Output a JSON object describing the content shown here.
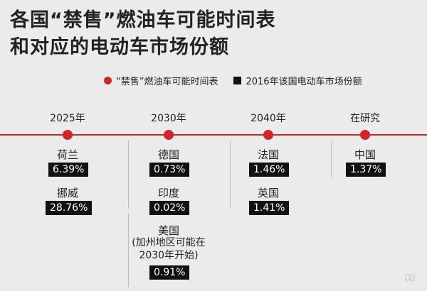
{
  "title": {
    "line1": "各国“禁售”燃油车可能时间表",
    "line2": "和对应的电动车市场份额"
  },
  "legend": {
    "ban_label": "“禁售”燃油车可能时间表",
    "share_label": "2016年该国电动车市场份额",
    "ban_color": "#d0262a",
    "share_color": "#111111"
  },
  "columns": [
    {
      "year": "2025年",
      "countries": [
        {
          "name": "荷兰",
          "share": "6.39%"
        },
        {
          "name": "挪威",
          "share": "28.76%"
        }
      ]
    },
    {
      "year": "2030年",
      "countries": [
        {
          "name": "德国",
          "share": "0.73%"
        },
        {
          "name": "印度",
          "share": "0.02%"
        },
        {
          "name": "美国",
          "note": [
            "(加州地区可能在",
            "2030年开始)"
          ],
          "share": "0.91%"
        }
      ]
    },
    {
      "year": "2040年",
      "countries": [
        {
          "name": "法国",
          "share": "1.46%"
        },
        {
          "name": "英国",
          "share": "1.41%"
        }
      ]
    },
    {
      "year": "在研究",
      "countries": [
        {
          "name": "中国",
          "share": "1.37%"
        }
      ]
    }
  ]
}
